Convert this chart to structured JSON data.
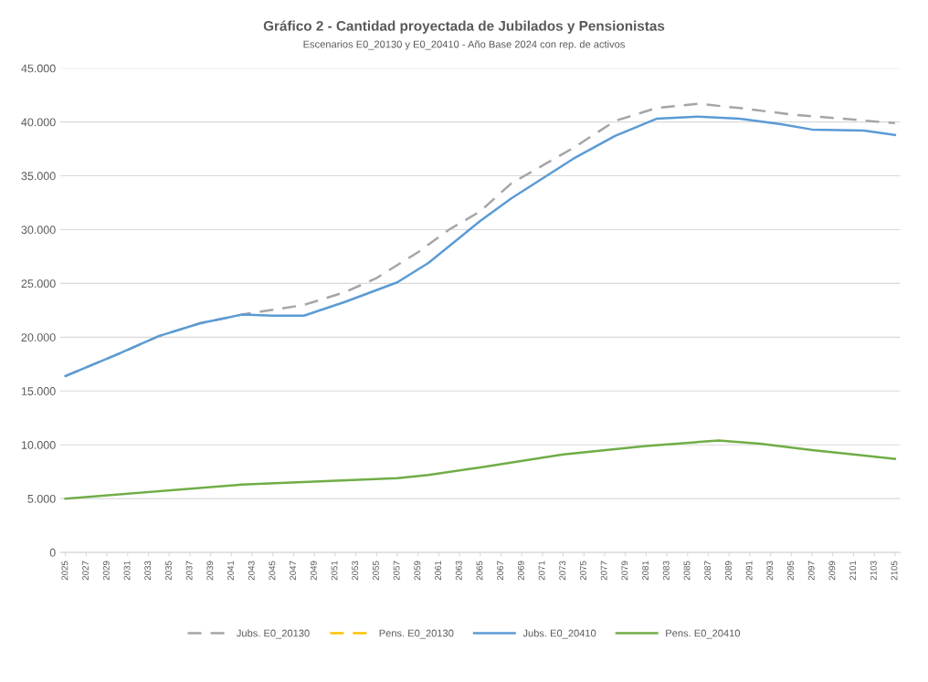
{
  "chart_data": {
    "type": "line",
    "title": "Gráfico 2 - Cantidad proyectada de Jubilados y Pensionistas",
    "subtitle": "Escenarios E0_20130 y E0_20410 - Año Base 2024 con rep. de activos",
    "series": [
      {
        "name": "Jubs. E0_20130",
        "color": "#a5a5a5",
        "line_style": "dashed",
        "x": [
          2025,
          2030,
          2034,
          2038,
          2042,
          2044,
          2048,
          2052,
          2055,
          2059,
          2062,
          2065,
          2068,
          2074,
          2078,
          2082,
          2086,
          2090,
          2095,
          2100,
          2105
        ],
        "values": [
          16400,
          18400,
          20100,
          21300,
          22100,
          22400,
          23000,
          24200,
          25500,
          27900,
          30000,
          31700,
          34300,
          37600,
          40100,
          41300,
          41700,
          41300,
          40700,
          40300,
          39900
        ]
      },
      {
        "name": "Pens. E0_20130",
        "color": "#ffc000",
        "line_style": "dashed"
      },
      {
        "name": "Jubs. E0_20410",
        "color": "#5b9bd5",
        "line_style": "solid",
        "x": [
          2025,
          2030,
          2034,
          2038,
          2042,
          2045,
          2048,
          2052,
          2057,
          2060,
          2065,
          2068,
          2074,
          2078,
          2082,
          2086,
          2090,
          2094,
          2097,
          2102,
          2105
        ],
        "values": [
          16400,
          18400,
          20100,
          21300,
          22100,
          22000,
          22000,
          23300,
          25100,
          26900,
          30800,
          32900,
          36600,
          38700,
          40300,
          40500,
          40300,
          39800,
          39300,
          39200,
          38800
        ]
      },
      {
        "name": "Pens. E0_20410",
        "color": "#70ad47",
        "line_style": "solid",
        "x": [
          2025,
          2042,
          2057,
          2060,
          2065,
          2073,
          2081,
          2088,
          2092,
          2097,
          2101,
          2105
        ],
        "values": [
          5000,
          6300,
          6900,
          7200,
          7900,
          9100,
          9900,
          10400,
          10100,
          9500,
          9100,
          8700
        ]
      }
    ],
    "xlim": [
      2024.5,
      2105.5
    ],
    "xticks": [
      2025,
      2027,
      2029,
      2031,
      2033,
      2035,
      2037,
      2039,
      2041,
      2043,
      2045,
      2047,
      2049,
      2051,
      2053,
      2055,
      2057,
      2059,
      2061,
      2063,
      2065,
      2067,
      2069,
      2071,
      2073,
      2075,
      2077,
      2079,
      2081,
      2083,
      2085,
      2087,
      2089,
      2091,
      2093,
      2095,
      2097,
      2099,
      2101,
      2103,
      2105
    ],
    "ylim": [
      0,
      45000
    ],
    "yticks": [
      {
        "value": 0,
        "label": "0"
      },
      {
        "value": 5000,
        "label": "5.000"
      },
      {
        "value": 10000,
        "label": "10.000"
      },
      {
        "value": 15000,
        "label": "15.000"
      },
      {
        "value": 20000,
        "label": "20.000"
      },
      {
        "value": 25000,
        "label": "25.000"
      },
      {
        "value": 30000,
        "label": "30.000"
      },
      {
        "value": 35000,
        "label": "35.000"
      },
      {
        "value": 40000,
        "label": "40.000"
      },
      {
        "value": 45000,
        "label": "45.000"
      }
    ],
    "grid": "y",
    "legend": "bottom",
    "marker": "none"
  }
}
